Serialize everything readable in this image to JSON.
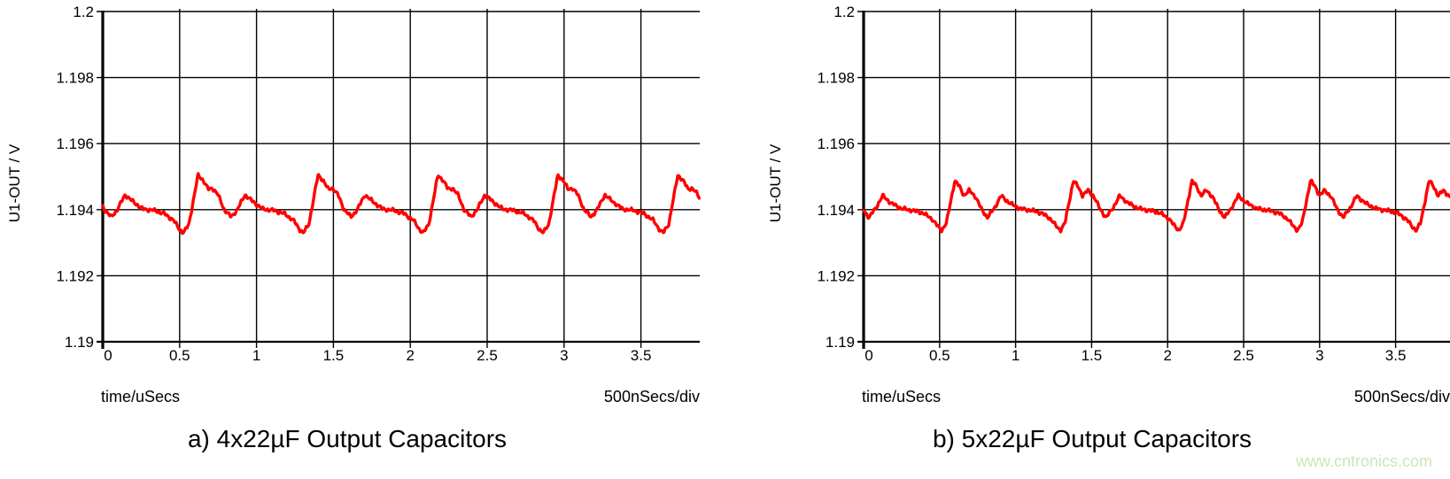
{
  "watermark": {
    "text": "www.cntronics.com",
    "color": "#cbe6ba"
  },
  "chart_data": [
    {
      "type": "line",
      "caption": "a) 4x22µF Output Capacitors",
      "ylabel": "U1-OUT / V",
      "xlabel": "time/uSecs",
      "scale_note": "500nSecs/div",
      "ylim": [
        1.19,
        1.2
      ],
      "y_ticks": [
        "1.2",
        "1.198",
        "1.196",
        "1.194",
        "1.192",
        "1.19"
      ],
      "y_tick_values": [
        1.2,
        1.198,
        1.196,
        1.194,
        1.192,
        1.19
      ],
      "x_ticks": [
        "0",
        "0.5",
        "1",
        "1.5",
        "2",
        "2.5",
        "3",
        "3.5"
      ],
      "x_tick_values": [
        0,
        0.5,
        1,
        1.5,
        2,
        2.5,
        3,
        3.5
      ],
      "x_max": 3.88,
      "grid": true,
      "legend": "none",
      "series": [
        {
          "name": "U1-OUT",
          "color": "#ff0000",
          "base_v": 1.194,
          "peak_v": 1.1951,
          "min_v": 1.1933,
          "ripple_pp_v": 0.0018,
          "period_us": 0.78,
          "first_peak_us": 0.62,
          "cycle_keypoints": [
            [
              0.0,
              1.19505
            ],
            [
              0.035,
              1.19488
            ],
            [
              0.065,
              1.19462
            ],
            [
              0.095,
              1.19465
            ],
            [
              0.13,
              1.19445
            ],
            [
              0.17,
              1.194
            ],
            [
              0.215,
              1.19378
            ],
            [
              0.255,
              1.194
            ],
            [
              0.305,
              1.19445
            ],
            [
              0.355,
              1.19425
            ],
            [
              0.42,
              1.19402
            ],
            [
              0.49,
              1.19398
            ],
            [
              0.56,
              1.19388
            ],
            [
              0.62,
              1.19368
            ],
            [
              0.66,
              1.1934
            ],
            [
              0.685,
              1.1933
            ],
            [
              0.72,
              1.19355
            ],
            [
              0.75,
              1.1943
            ],
            [
              0.78,
              1.19505
            ]
          ]
        }
      ]
    },
    {
      "type": "line",
      "caption": "b) 5x22µF Output Capacitors",
      "ylabel": "U1-OUT / V",
      "xlabel": "time/uSecs",
      "scale_note": "500nSecs/div",
      "ylim": [
        1.19,
        1.2
      ],
      "y_ticks": [
        "1.2",
        "1.198",
        "1.196",
        "1.194",
        "1.192",
        "1.19"
      ],
      "y_tick_values": [
        1.2,
        1.198,
        1.196,
        1.194,
        1.192,
        1.19
      ],
      "x_ticks": [
        "0",
        "0.5",
        "1",
        "1.5",
        "2",
        "2.5",
        "3",
        "3.5"
      ],
      "x_tick_values": [
        0,
        0.5,
        1,
        1.5,
        2,
        2.5,
        3,
        3.5
      ],
      "x_max": 3.86,
      "grid": true,
      "legend": "none",
      "series": [
        {
          "name": "U1-OUT",
          "color": "#ff0000",
          "base_v": 1.194,
          "peak_v": 1.1949,
          "min_v": 1.1934,
          "ripple_pp_v": 0.0015,
          "period_us": 0.78,
          "first_peak_us": 0.6,
          "cycle_keypoints": [
            [
              0.0,
              1.19488
            ],
            [
              0.03,
              1.1947
            ],
            [
              0.06,
              1.19443
            ],
            [
              0.095,
              1.19458
            ],
            [
              0.135,
              1.1944
            ],
            [
              0.175,
              1.19402
            ],
            [
              0.215,
              1.19376
            ],
            [
              0.26,
              1.19405
            ],
            [
              0.305,
              1.19442
            ],
            [
              0.36,
              1.1942
            ],
            [
              0.43,
              1.19403
            ],
            [
              0.5,
              1.19398
            ],
            [
              0.57,
              1.1939
            ],
            [
              0.63,
              1.19372
            ],
            [
              0.67,
              1.19348
            ],
            [
              0.695,
              1.19338
            ],
            [
              0.725,
              1.1936
            ],
            [
              0.755,
              1.1943
            ],
            [
              0.78,
              1.19488
            ]
          ]
        }
      ]
    }
  ]
}
